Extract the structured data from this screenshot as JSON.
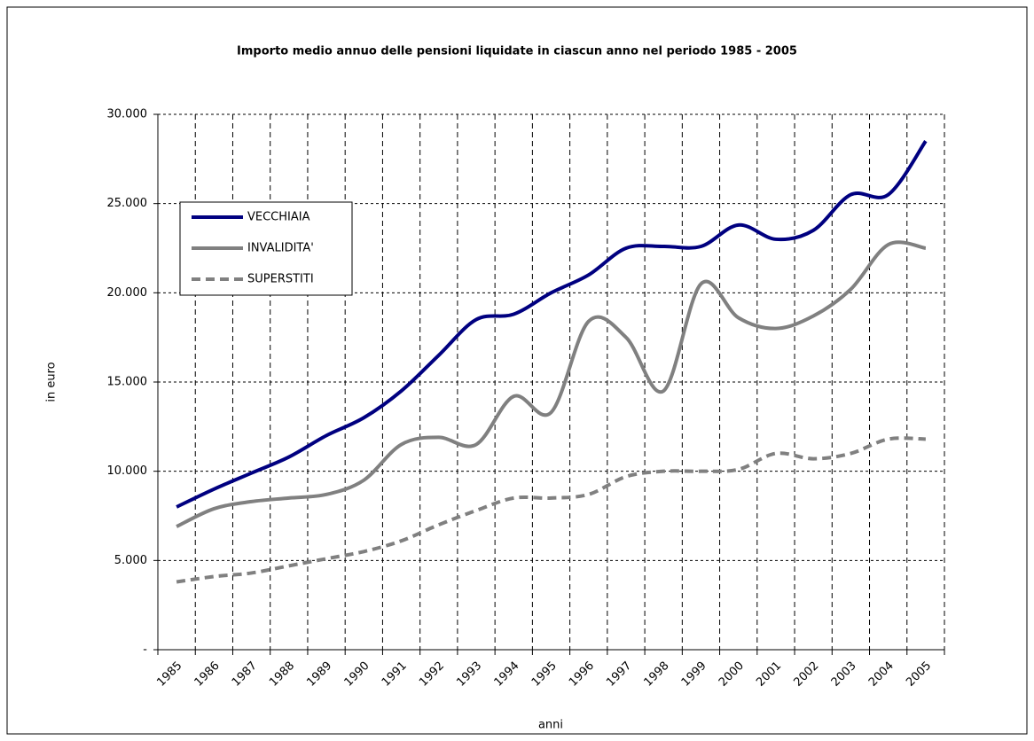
{
  "chart_data": {
    "type": "line",
    "title": "Importo medio annuo delle pensioni liquidate in ciascun anno nel periodo 1985 - 2005",
    "x_label": "anni",
    "y_label": "in euro",
    "categories": [
      "1985",
      "1986",
      "1987",
      "1988",
      "1989",
      "1990",
      "1991",
      "1992",
      "1993",
      "1994",
      "1995",
      "1996",
      "1997",
      "1998",
      "1999",
      "2000",
      "2001",
      "2002",
      "2003",
      "2004",
      "2005"
    ],
    "series": [
      {
        "name": "VECCHIAIA",
        "color": "#000080",
        "dash": false,
        "values": [
          8000,
          9000,
          9900,
          10800,
          12000,
          13000,
          14500,
          16500,
          18500,
          18800,
          20000,
          21000,
          22500,
          22600,
          22600,
          23800,
          23000,
          23500,
          25500,
          25500,
          28500
        ]
      },
      {
        "name": "INVALIDITA'",
        "color": "#808080",
        "dash": false,
        "values": [
          6900,
          7900,
          8300,
          8500,
          8700,
          9500,
          11500,
          11900,
          11500,
          14200,
          13300,
          18400,
          17500,
          14500,
          20500,
          18600,
          18000,
          18700,
          20200,
          22700,
          22500
        ]
      },
      {
        "name": "SUPERSTITI",
        "color": "#808080",
        "dash": true,
        "values": [
          3800,
          4100,
          4300,
          4700,
          5100,
          5500,
          6100,
          7000,
          7800,
          8500,
          8500,
          8700,
          9700,
          10000,
          10000,
          10100,
          11000,
          10700,
          11000,
          11800,
          11800
        ]
      }
    ],
    "ylim": [
      0,
      30000
    ],
    "yticks": [
      {
        "value": 0,
        "label": "-"
      },
      {
        "value": 5000,
        "label": "5.000"
      },
      {
        "value": 10000,
        "label": "10.000"
      },
      {
        "value": 15000,
        "label": "15.000"
      },
      {
        "value": 20000,
        "label": "20.000"
      },
      {
        "value": 25000,
        "label": "25.000"
      },
      {
        "value": 30000,
        "label": "30.000"
      }
    ],
    "grid": true,
    "smooth": true
  }
}
